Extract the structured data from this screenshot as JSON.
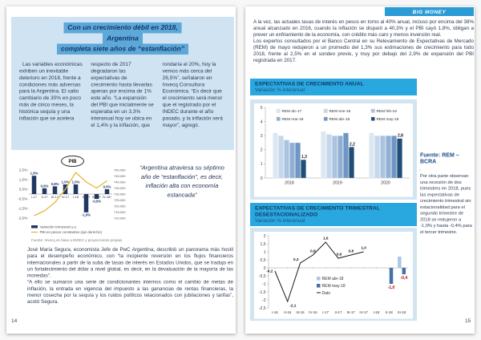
{
  "pages": {
    "left": {
      "page_number": "14",
      "title_lines": [
        "Con un crecimiento débil en 2018,",
        "Argentina",
        "completa siete años de “estanflación”"
      ],
      "columns": [
        "Las variables económicas exhiben un inevitable deterioro en 2018, frente a condiciones más adversas para la Argentina. El salto cambiario de 30% en poco más de cinco meses, la histórica sequía y una inflación que se acelera",
        "respecto de 2017 degradaron las expectativas de crecimiento hasta llevarlas apenas por encima de 1% este año. “La expansión del PBI que inicialmente se esperaba en un 3,3% interanual hoy se ubica en el 1,4% y la inflación, que",
        "rondaría el 20%, hoy la vemos más cerca del 26,5%”, señalaron en Invecq Consultora Económica. “Es decir que el crecimiento será menor que el registrado por el INDEC durante el año pasado, y la inflación será mayor”, agregó."
      ],
      "quote": "“Argentina atraviesa su séptimo año de “estanflación”, es decir, inflación alta con economía estancada”",
      "bottom_paragraphs": [
        "José María Segura, economista Jefe de PwC Argentina, describió un panorama más hostil para el desempeño económico, con “la incipiente reversión en los flujos financieros internacionales a partir de la suba de tasas de interés en Estados Unidos, que se tradujo en un fortalecimiento del dólar a nivel global, es decir, en la devaluación de la mayoría de las monedas”.",
        "“A ello se sumaron una serie de condicionantes internos como el cambio de metas de inflación, la entrada en vigencia del impuesto a las ganancias de rentas financieras, la menor cosecha por la sequía y los ruidos políticos relacionados con jubilaciones y tarifas”, acotó Segura."
      ]
    },
    "right": {
      "page_number": "15",
      "badge": "BIG MONEY",
      "paragraphs": [
        "A la vez, las actuales tasas de interés en pesos en torno al 40% anual, incluso por encima del 38% anual alcanzado en 2016, cuando la inflación se disparó a 40,3% y el PBI cayó 1,8%, obligan a prever un enfriamiento de la economía, con crédito más caro y menos inversión real.",
        "Los expertos consultados por el Banco Central en su Relevamiento de Expectativas de Mercado (REM) de mayo redujeron a un promedio del 1,3% sus estimaciones de crecimiento para todo 2018, frente al 2,5% en el sondeo previo, y muy por debajo del 2,9% de expansión del PBI registrada en 2017."
      ],
      "sections": [
        {
          "title": "EXPECTATIVAS DE CRECIMIENTO ANUAL",
          "subtitle": "Variación % interanual"
        },
        {
          "title": "EXPECTATIVAS DE CRECIMIENTO TRIMESTRAL DESESTACIONALIZADO",
          "subtitle": "Variación % interanual"
        }
      ],
      "source": "Fuente: REM – BCRA",
      "dot": ".",
      "sidebar_text": "Por otra parte observan una recesión de dos trimestres en 2018, pues las expectativas de crecimiento trimestral sin estacionalidad para el segundo trimestre de 2018 se redujeron a -1,0% y hasta -0,4% para el tercer trimestre."
    }
  },
  "chart_data": [
    {
      "id": "pib",
      "type": "bar",
      "title": "PIB",
      "categories": [
        "I-17",
        "II-17",
        "III-17",
        "IV-17",
        "I-18",
        "II-18*",
        "III-18*",
        "IV-18*"
      ],
      "bar_series": {
        "name": "Variación trimestral s.e.",
        "color": "#1f3864",
        "values": [
          1.9,
          0.6,
          0.8,
          1.0,
          1.0,
          -1.9,
          -0.5,
          0.5
        ],
        "labels": [
          "1,9%",
          "0,6%",
          "0,8%",
          "1,0%",
          "1,0%",
          "-1,9%",
          "-0,5%",
          "0,5%"
        ]
      },
      "line_series": {
        "name": "PBI en pesos constantes (eje derecho)",
        "color": "#e5b63c",
        "values": [
          712000,
          716000,
          723000,
          734000,
          748000,
          740000,
          735000,
          741000
        ]
      },
      "left_axis": {
        "min": -2.5,
        "max": 2.5,
        "tick_values": [
          2.5,
          1.5,
          0.5,
          -0.5,
          -1.5,
          -2.5
        ],
        "tick_labels": [
          "2,5%",
          "1,5%",
          "0,5%",
          "-0,5%",
          "-1,5%",
          "-2,5%"
        ]
      },
      "right_axis": {
        "min": 710000,
        "max": 750000,
        "tick_values": [
          750000,
          745000,
          740000,
          735000,
          730000,
          725000,
          720000,
          715000,
          710000
        ],
        "tick_labels": [
          "750.000",
          "745.000",
          "740.000",
          "735.000",
          "730.000",
          "725.000",
          "720.000",
          "715.000",
          "710.000"
        ]
      },
      "footnote": "Fuente: Invecq en base a INDEC y proyecciones propias",
      "grid": false
    },
    {
      "id": "anual",
      "type": "bar",
      "title": "EXPECTATIVAS DE CRECIMIENTO ANUAL",
      "categories": [
        "2018",
        "2019",
        "2020"
      ],
      "series": [
        {
          "name": "REM dic-17",
          "color": "#dde7f2",
          "values": [
            3.2,
            3.3,
            3.2
          ]
        },
        {
          "name": "REM ene-18",
          "color": "#c6d7ea",
          "values": [
            3.0,
            3.1,
            3.0
          ]
        },
        {
          "name": "REM feb-18",
          "color": "#aac4e0",
          "values": [
            2.7,
            3.0,
            3.0
          ]
        },
        {
          "name": "REM mar-18",
          "color": "#8fb0d4",
          "values": [
            2.5,
            3.0,
            3.0
          ]
        },
        {
          "name": "REM abr-18",
          "color": "#7096c4",
          "values": [
            2.5,
            3.2,
            3.0
          ]
        },
        {
          "name": "REM may-18",
          "color": "#1f4e79",
          "values": [
            1.3,
            2.2,
            2.8
          ],
          "labels": [
            "1,3",
            "2,2",
            "2,8"
          ]
        }
      ],
      "ylim": [
        0,
        5
      ],
      "ytick_values": [
        0,
        1,
        2,
        3,
        4,
        5
      ],
      "ytick_labels": [
        "0",
        "1",
        "2",
        "3",
        "4",
        "5"
      ],
      "legend_position": "top-inside",
      "grid": false
    },
    {
      "id": "trimestral",
      "type": "line",
      "title": "EXPECTATIVAS DE CRECIMIENTO TRIMESTRAL DESESTACIONALIZADO",
      "categories": [
        "I-16",
        "II-16",
        "III-16",
        "IV-16",
        "I-17",
        "II-17",
        "III-17",
        "IV-17",
        "I-18",
        "II-18",
        "III-18"
      ],
      "line_series": {
        "name": "Dato",
        "color": "#1a1a1a",
        "values": [
          -0.2,
          -2.1,
          0.3,
          0.8,
          1.6,
          0.6,
          0.8,
          1.0,
          null,
          null,
          null
        ],
        "labels": [
          "-0,2",
          "-2,1",
          "0,3",
          "0,8",
          "1,6",
          "0,6",
          "0,8",
          "1,0",
          "",
          "",
          ""
        ]
      },
      "bar_series": [
        {
          "name": "REM abr-18",
          "color": "#a9c7e8",
          "values": [
            null,
            null,
            null,
            null,
            null,
            null,
            null,
            null,
            null,
            null,
            0.7
          ]
        },
        {
          "name": "REM may-18",
          "color": "#4472a4",
          "values": [
            null,
            null,
            null,
            null,
            null,
            null,
            null,
            null,
            null,
            -1.0,
            -0.4
          ],
          "labels": [
            null,
            null,
            null,
            null,
            null,
            null,
            null,
            null,
            null,
            "-1,0",
            "-0,4"
          ],
          "label_color": "#c00000"
        }
      ],
      "ylim": [
        -2.5,
        2
      ],
      "ytick_values": [
        2,
        1.5,
        1,
        0.5,
        0,
        -0.5,
        -1,
        -1.5,
        -2,
        -2.5
      ],
      "ytick_labels": [
        "2",
        "1,5",
        "1",
        "0,5",
        "0",
        "-0,5",
        "-1",
        "-1,5",
        "-2",
        "-2,5"
      ],
      "legend_position": "center-inside",
      "grid": false
    }
  ]
}
